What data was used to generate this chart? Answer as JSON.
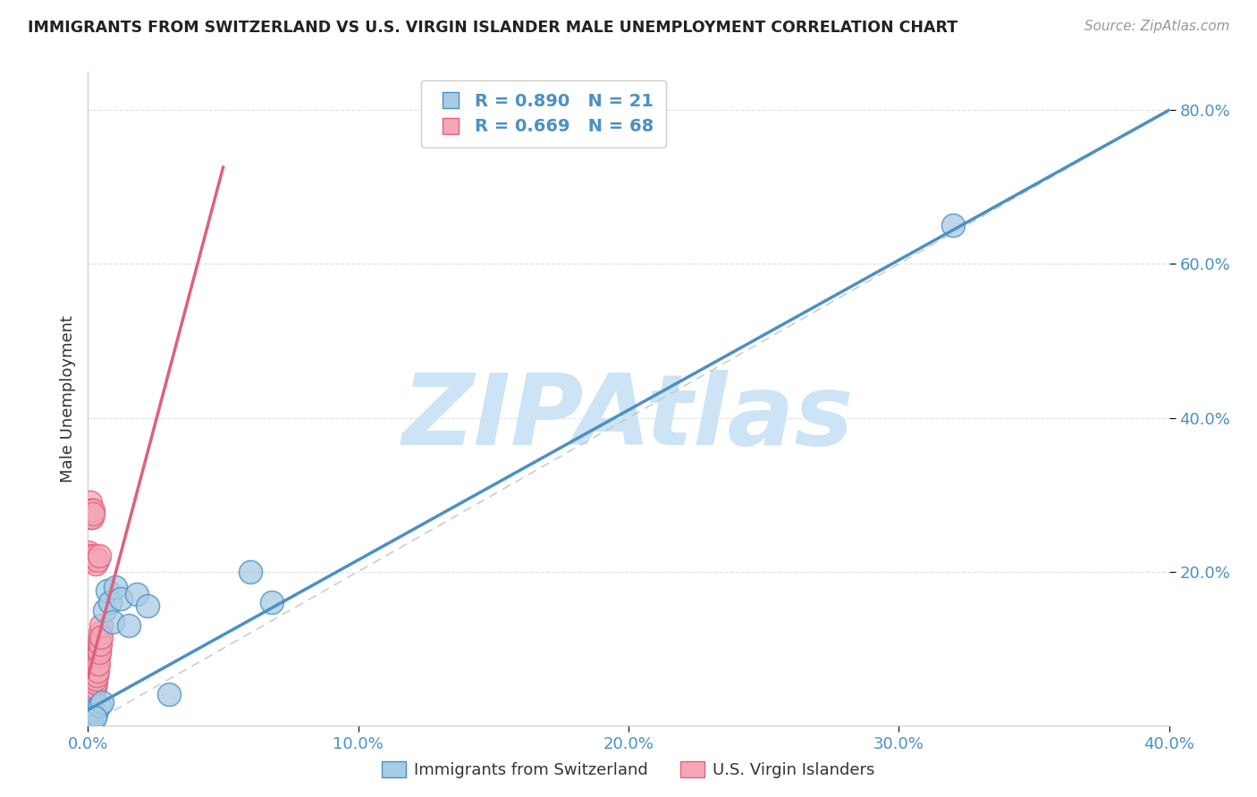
{
  "title": "IMMIGRANTS FROM SWITZERLAND VS U.S. VIRGIN ISLANDER MALE UNEMPLOYMENT CORRELATION CHART",
  "source": "Source: ZipAtlas.com",
  "ylabel_label": "Male Unemployment",
  "legend_label1": "Immigrants from Switzerland",
  "legend_label2": "U.S. Virgin Islanders",
  "R1": 0.89,
  "N1": 21,
  "R2": 0.669,
  "N2": 68,
  "color_blue": "#a8cce4",
  "color_pink": "#f4a7b9",
  "line_blue": "#4a90c4",
  "line_pink": "#e0607a",
  "xlim": [
    0.0,
    0.4
  ],
  "ylim": [
    0.0,
    0.85
  ],
  "xticks": [
    0.0,
    0.1,
    0.2,
    0.3,
    0.4
  ],
  "yticks_right": [
    0.2,
    0.4,
    0.6,
    0.8
  ],
  "blue_scatter_x": [
    0.0005,
    0.001,
    0.0015,
    0.002,
    0.003,
    0.004,
    0.005,
    0.006,
    0.007,
    0.008,
    0.009,
    0.01,
    0.012,
    0.015,
    0.018,
    0.022,
    0.03,
    0.06,
    0.068,
    0.32,
    0.0025
  ],
  "blue_scatter_y": [
    0.01,
    0.015,
    0.005,
    0.02,
    0.015,
    0.025,
    0.03,
    0.15,
    0.175,
    0.16,
    0.135,
    0.18,
    0.165,
    0.13,
    0.17,
    0.155,
    0.04,
    0.2,
    0.16,
    0.65,
    0.01
  ],
  "pink_scatter_x": [
    0.0003,
    0.0005,
    0.0005,
    0.0008,
    0.0008,
    0.001,
    0.001,
    0.0012,
    0.0012,
    0.0015,
    0.0015,
    0.0018,
    0.0018,
    0.002,
    0.002,
    0.0022,
    0.0022,
    0.0025,
    0.0025,
    0.0028,
    0.0028,
    0.003,
    0.003,
    0.0032,
    0.0032,
    0.0035,
    0.0035,
    0.0038,
    0.0038,
    0.004,
    0.0042,
    0.0042,
    0.0045,
    0.0045,
    0.0048,
    0.0048,
    0.0003,
    0.0005,
    0.0007,
    0.0009,
    0.0011,
    0.0013,
    0.0006,
    0.0004,
    0.0008,
    0.001,
    0.0002,
    0.0004,
    0.0006,
    0.0007,
    0.0003,
    0.0009,
    0.0005,
    0.0005,
    0.0007,
    0.0003,
    0.0004,
    0.0006,
    0.0008,
    0.001,
    0.0012,
    0.0015,
    0.0018,
    0.002,
    0.0025,
    0.003,
    0.0035,
    0.004
  ],
  "pink_scatter_y": [
    0.015,
    0.02,
    0.01,
    0.025,
    0.015,
    0.03,
    0.02,
    0.035,
    0.025,
    0.04,
    0.03,
    0.045,
    0.035,
    0.05,
    0.04,
    0.055,
    0.045,
    0.06,
    0.05,
    0.065,
    0.055,
    0.07,
    0.06,
    0.075,
    0.065,
    0.08,
    0.07,
    0.09,
    0.08,
    0.1,
    0.11,
    0.095,
    0.12,
    0.105,
    0.13,
    0.115,
    0.005,
    0.005,
    0.005,
    0.01,
    0.01,
    0.015,
    0.005,
    0.005,
    0.01,
    0.015,
    0.005,
    0.005,
    0.005,
    0.008,
    0.005,
    0.008,
    0.003,
    0.22,
    0.215,
    0.225,
    0.22,
    0.28,
    0.29,
    0.27,
    0.28,
    0.27,
    0.28,
    0.275,
    0.22,
    0.21,
    0.215,
    0.22
  ],
  "watermark": "ZIPAtlas",
  "watermark_color": "#cce4f5",
  "background_color": "#ffffff",
  "grid_color": "#e0e0e0"
}
